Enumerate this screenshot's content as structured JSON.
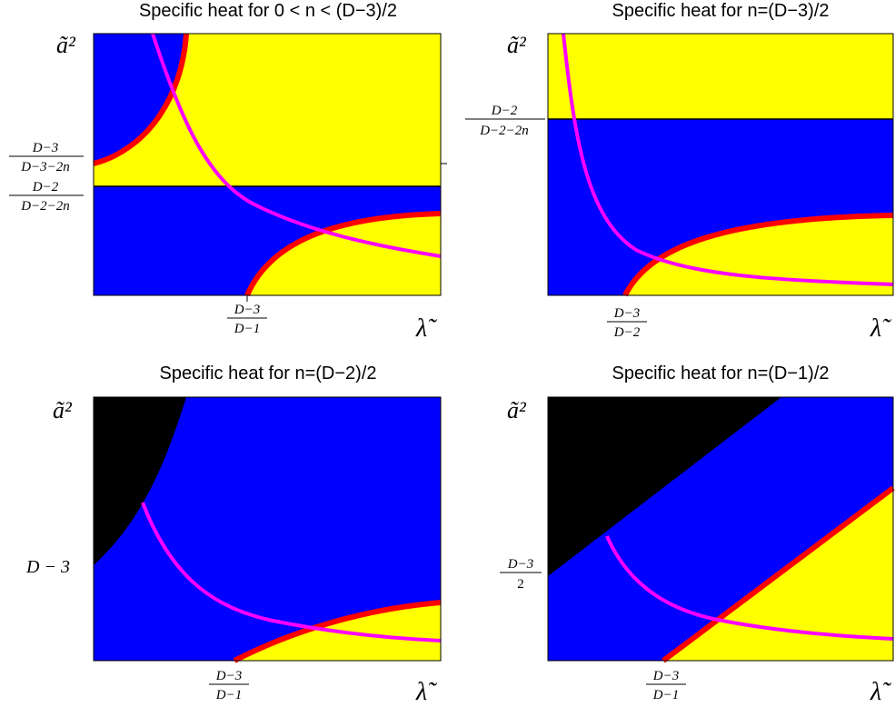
{
  "panels": [
    {
      "title": "Specific heat for 0 < n < (D−3)/2",
      "y_axis_label": "ã²",
      "x_axis_label": "λ̃",
      "x_tick": {
        "num": "D−3",
        "den": "D−1"
      },
      "y_ticks": [
        {
          "num": "D−3",
          "den": "D−3−2n"
        },
        {
          "num": "D−2",
          "den": "D−2−2n"
        }
      ]
    },
    {
      "title": "Specific heat for n=(D−3)/2",
      "y_axis_label": "ã²",
      "x_axis_label": "λ̃",
      "x_tick": {
        "num": "D−3",
        "den": "D−2"
      },
      "y_ticks": [
        {
          "num": "D−2",
          "den": "D−2−2n"
        }
      ]
    },
    {
      "title": "Specific heat for n=(D−2)/2",
      "y_axis_label": "ã²",
      "x_axis_label": "λ̃",
      "x_tick": {
        "num": "D−3",
        "den": "D−1"
      },
      "y_ticks": [
        {
          "text": "D − 3"
        }
      ]
    },
    {
      "title": "Specific heat for n=(D−1)/2",
      "y_axis_label": "ã²",
      "x_axis_label": "λ̃",
      "x_tick": {
        "num": "D−3",
        "den": "D−1"
      },
      "y_ticks": [
        {
          "num": "D−3",
          "den": "2"
        }
      ]
    }
  ],
  "colors": {
    "stable": "#0000ff",
    "unstable": "#ffff00",
    "forbidden": "#000000",
    "boundary": "#ff0000",
    "curve": "#ff00ff"
  }
}
